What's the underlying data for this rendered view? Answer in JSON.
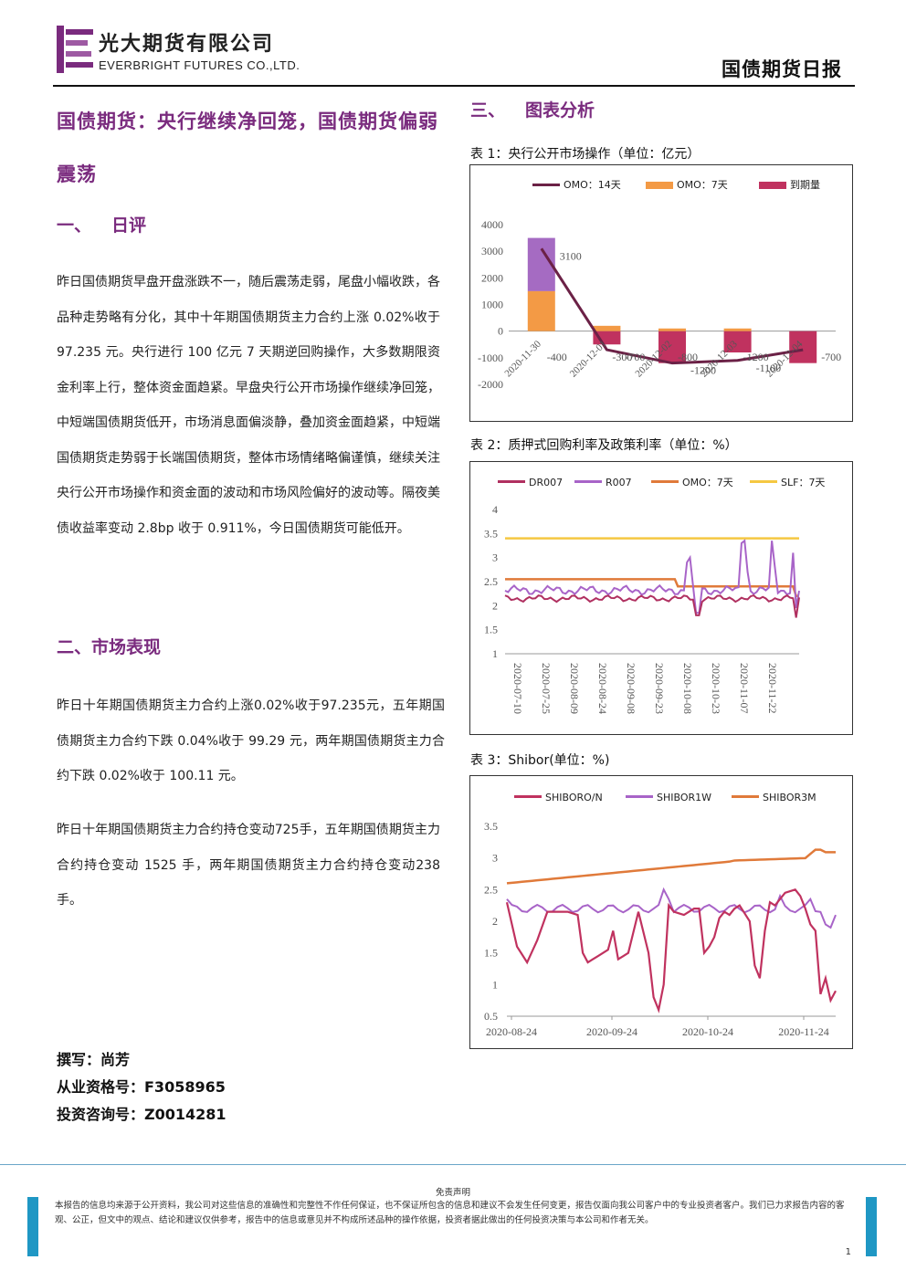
{
  "header": {
    "company_cn": "光大期货有限公司",
    "company_en": "EVERBRIGHT FUTURES CO.,LTD.",
    "report_type": "国债期货日报"
  },
  "headline": "国债期货：央行继续净回笼，国债期货偏弱震荡",
  "sections": {
    "s1_num": "一、",
    "s1_title": "日评",
    "s1_text": "昨日国债期货早盘开盘涨跌不一，随后震荡走弱，尾盘小幅收跌，各品种走势略有分化，其中十年期国债期货主力合约上涨 0.02%收于 97.235 元。央行进行 100 亿元 7 天期逆回购操作，大多数期限资金利率上行，整体资金面趋紧。早盘央行公开市场操作继续净回笼，中短端国债期货低开，市场消息面偏淡静，叠加资金面趋紧，中短端国债期货走势弱于长端国债期货，整体市场情绪略偏谨慎，继续关注央行公开市场操作和资金面的波动和市场风险偏好的波动等。隔夜美债收益率变动 2.8bp 收于 0.911%，今日国债期货可能低开。",
    "s2_title": "二、市场表现",
    "s2_p1": "昨日十年期国债期货主力合约上涨0.02%收于97.235元，五年期国债期货主力合约下跌 0.04%收于 99.29 元，两年期国债期货主力合约下跌 0.02%收于 100.11 元。",
    "s2_p2": "昨日十年期国债期货主力合约持仓变动725手，五年期国债期货主力合约持仓变动 1525 手，两年期国债期货主力合约持仓变动238手。",
    "s3_num": "三、",
    "s3_title": "图表分析"
  },
  "author": {
    "writer": "撰写：尚芳",
    "license": "从业资格号：F3058965",
    "consult": "投资咨询号：Z0014281"
  },
  "footer": {
    "disclaimer_title": "免责声明",
    "disclaimer_text": "本报告的信息均来源于公开资料，我公司对这些信息的准确性和完整性不作任何保证，也不保证所包含的信息和建议不会发生任何变更，报告仅面向我公司客户中的专业投资者客户。我们已力求报告内容的客观、公正，但文中的观点、结论和建议仅供参考，报告中的信息或意见并不构成所述品种的操作依据，投资者据此做出的任何投资决策与本公司和作者无关。",
    "page": "1"
  },
  "colors": {
    "brand_purple": "#7a2b7e",
    "footer_blue": "#1f97c4"
  },
  "chart_data": [
    {
      "type": "bar",
      "title": "表 1：央行公开市场操作（单位：亿元）",
      "categories": [
        "2020-11-30",
        "2020-12-01",
        "2020-12-02",
        "2020-12-03",
        "2020-12-04"
      ],
      "series": [
        {
          "name": "OMO：14天",
          "kind": "line",
          "color": "#6b2146",
          "values": [
            3100,
            -700,
            -1200,
            -1100,
            -700
          ]
        },
        {
          "name": "OMO：7天",
          "kind": "bar-stack",
          "color": "#f39a45",
          "values": [
            1500,
            200,
            100,
            100,
            0
          ]
        },
        {
          "name": "到期量",
          "kind": "bar-stack",
          "color_pos": "#a56bc2",
          "color": "#c0325f",
          "values": [
            2000,
            -500,
            -1200,
            -800,
            -1200
          ]
        }
      ],
      "line_labels": [
        "3100",
        "-700",
        "-1200",
        "-1100",
        "-700"
      ],
      "bar_labels": [
        "-400",
        "-300",
        "-800",
        "-1200"
      ],
      "yticks": [
        "4000",
        "3000",
        "2000",
        "1000",
        "0",
        "-1000",
        "-2000"
      ],
      "ylim": [
        -2000,
        4000
      ]
    },
    {
      "type": "line",
      "title": "表 2：质押式回购利率及政策利率（单位：%）",
      "series": [
        {
          "name": "DR007",
          "color": "#b03060"
        },
        {
          "name": "R007",
          "color": "#a864c8"
        },
        {
          "name": "OMO：7天",
          "color": "#e07a3a"
        },
        {
          "name": "SLF：7天",
          "color": "#f5c842"
        }
      ],
      "xticks": [
        "2020-07-10",
        "2020-07-25",
        "2020-08-09",
        "2020-08-24",
        "2020-09-08",
        "2020-09-23",
        "2020-10-08",
        "2020-10-23",
        "2020-11-07",
        "2020-11-22"
      ],
      "yticks": [
        "4",
        "3.5",
        "3",
        "2.5",
        "2",
        "1.5",
        "1"
      ],
      "ylim": [
        1,
        4
      ],
      "note": "SLF 7d flat 3.4; OMO 7d 2.55 until 2020-10-08, then ~2.4"
    },
    {
      "type": "line",
      "title": "表 3：Shibor(单位：%)",
      "series": [
        {
          "name": "SHIBORO/N",
          "color": "#c0325f"
        },
        {
          "name": "SHIBOR1W",
          "color": "#a864c8"
        },
        {
          "name": "SHIBOR3M",
          "color": "#e07a3a"
        }
      ],
      "xticks": [
        "2020-08-24",
        "2020-09-24",
        "2020-10-24",
        "2020-11-24"
      ],
      "yticks": [
        "3.5",
        "3",
        "2.5",
        "2",
        "1.5",
        "1",
        "0.5"
      ],
      "ylim": [
        0.5,
        3.5
      ]
    }
  ]
}
